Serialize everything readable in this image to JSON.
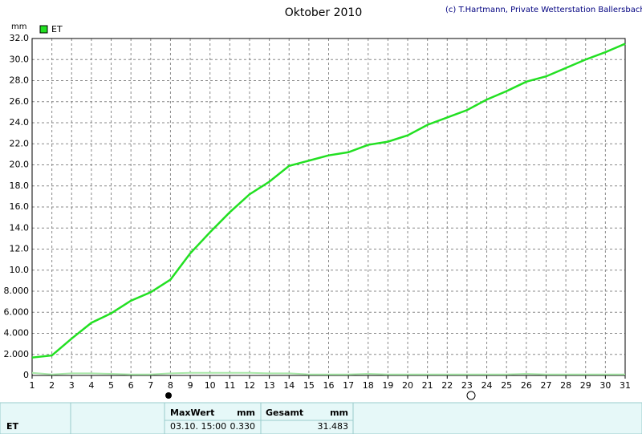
{
  "chart_data": {
    "type": "line",
    "title": "Oktober 2010",
    "credit": "(c) T.Hartmann, Private Wetterstation Ballersbach",
    "y_label": "mm",
    "x": [
      1,
      2,
      3,
      4,
      5,
      6,
      7,
      8,
      9,
      10,
      11,
      12,
      13,
      14,
      15,
      16,
      17,
      18,
      19,
      20,
      21,
      22,
      23,
      24,
      25,
      26,
      27,
      28,
      29,
      30,
      31
    ],
    "series": [
      {
        "name": "ET",
        "color": "#22e022",
        "values": [
          1.7,
          1.9,
          3.5,
          5.0,
          5.9,
          7.1,
          7.9,
          9.1,
          11.6,
          13.6,
          15.5,
          17.2,
          18.4,
          19.9,
          20.4,
          20.9,
          21.2,
          21.9,
          22.2,
          22.8,
          23.8,
          24.5,
          25.2,
          26.2,
          27.0,
          27.9,
          28.4,
          29.2,
          30.0,
          30.7,
          31.5
        ]
      },
      {
        "color": "#a8e8a8",
        "values": [
          0.25,
          0.1,
          0.2,
          0.2,
          0.15,
          0.1,
          0.1,
          0.2,
          0.25,
          0.25,
          0.25,
          0.25,
          0.2,
          0.2,
          0.1,
          0.1,
          0.1,
          0.15,
          0.1,
          0.1,
          0.1,
          0.1,
          0.1,
          0.1,
          0.1,
          0.15,
          0.1,
          0.1,
          0.1,
          0.1,
          0.1
        ]
      }
    ],
    "xlim": [
      1,
      31
    ],
    "xticks": [
      1,
      2,
      3,
      4,
      5,
      6,
      7,
      8,
      9,
      10,
      11,
      12,
      13,
      14,
      15,
      16,
      17,
      18,
      19,
      20,
      21,
      22,
      23,
      24,
      25,
      26,
      27,
      28,
      29,
      30,
      31
    ],
    "ylim": [
      0,
      32
    ],
    "yticks": [
      0,
      {
        "value": 2,
        "label": "2.000"
      },
      {
        "value": 4,
        "label": "4.000"
      },
      {
        "value": 6,
        "label": "6.000"
      },
      {
        "value": 8,
        "label": "8.000"
      },
      {
        "value": 10,
        "label": "10.0"
      },
      {
        "value": 12,
        "label": "12.0"
      },
      {
        "value": 14,
        "label": "14.0"
      },
      {
        "value": 16,
        "label": "16.0"
      },
      {
        "value": 18,
        "label": "18.0"
      },
      {
        "value": 20,
        "label": "20.0"
      },
      {
        "value": 22,
        "label": "22.0"
      },
      {
        "value": 24,
        "label": "24.0"
      },
      {
        "value": 26,
        "label": "26.0"
      },
      {
        "value": 28,
        "label": "28.0"
      },
      {
        "value": 30,
        "label": "30.0"
      },
      {
        "value": 32,
        "label": "32.0"
      }
    ],
    "grid": true
  },
  "table": {
    "series": "ET",
    "max": {
      "label": "MaxWert",
      "unit": "mm",
      "time": "03.10. 15:00",
      "value": "0.330"
    },
    "total": {
      "label": "Gesamt",
      "unit": "mm",
      "value": "31.483"
    }
  }
}
